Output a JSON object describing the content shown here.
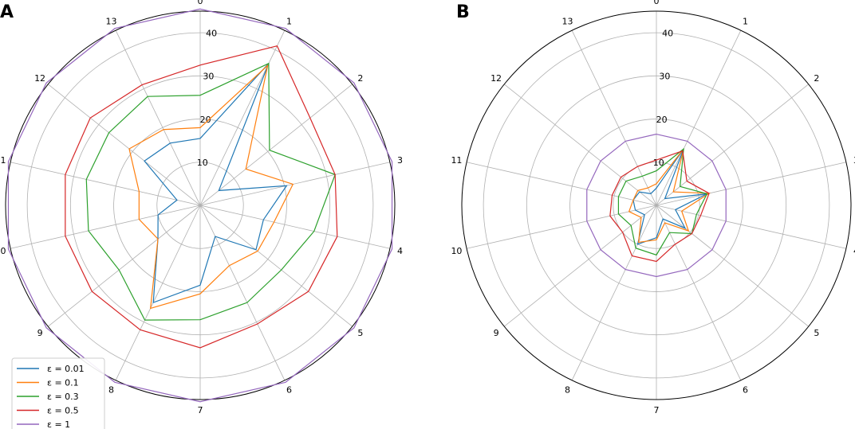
{
  "chart_data": [
    {
      "type": "radar",
      "panel": "A",
      "categories": [
        "0",
        "1",
        "2",
        "3",
        "4",
        "5",
        "6",
        "7",
        "8",
        "9",
        "10",
        "11",
        "12",
        "13"
      ],
      "r_ticks": [
        10,
        20,
        30,
        40
      ],
      "rlim": [
        0,
        45
      ],
      "grid": true,
      "legend": "bottom-left",
      "series": [
        {
          "name": "ε = 0.01",
          "color": "#1f77b4",
          "values": [
            15.5,
            36.5,
            5.5,
            20.5,
            15.0,
            16.5,
            8.0,
            18.5,
            25.0,
            12.5,
            10.0,
            5.5,
            16.5,
            16.0
          ]
        },
        {
          "name": "ε = 0.1",
          "color": "#ff7f0e",
          "values": [
            18.0,
            36.0,
            13.5,
            22.0,
            17.5,
            17.0,
            15.5,
            20.5,
            26.5,
            12.5,
            14.5,
            14.5,
            21.0,
            19.5
          ]
        },
        {
          "name": "ε = 0.3",
          "color": "#2ca02c",
          "values": [
            25.5,
            36.5,
            20.5,
            32.0,
            27.0,
            24.0,
            25.0,
            26.5,
            29.5,
            24.0,
            26.5,
            27.0,
            27.0,
            28.0
          ]
        },
        {
          "name": "ε = 0.5",
          "color": "#d62728",
          "values": [
            32.5,
            41.0,
            32.5,
            32.0,
            32.5,
            32.0,
            30.5,
            33.0,
            32.0,
            32.0,
            32.0,
            32.0,
            32.5,
            31.0
          ]
        },
        {
          "name": "ε = 1",
          "color": "#9467bd",
          "values": [
            45.5,
            45.5,
            45.5,
            45.5,
            45.5,
            45.5,
            45.5,
            45.5,
            45.5,
            45.5,
            45.5,
            45.5,
            45.5,
            45.5
          ]
        }
      ]
    },
    {
      "type": "radar",
      "panel": "B",
      "categories": [
        "0",
        "1",
        "2",
        "3",
        "4",
        "5",
        "6",
        "7",
        "8",
        "9",
        "10",
        "11",
        "12",
        "13"
      ],
      "r_ticks": [
        10,
        20,
        30,
        40
      ],
      "rlim": [
        0,
        45
      ],
      "grid": true,
      "series": [
        {
          "name": "ε = 0.01",
          "color": "#1f77b4",
          "values": [
            4.0,
            14.5,
            2.5,
            12.0,
            4.5,
            8.5,
            3.5,
            7.5,
            10.0,
            3.5,
            5.0,
            5.5,
            5.0,
            3.0
          ]
        },
        {
          "name": "ε = 0.1",
          "color": "#ff7f0e",
          "values": [
            5.0,
            14.5,
            5.0,
            12.5,
            6.0,
            9.5,
            4.5,
            8.0,
            9.5,
            4.5,
            6.5,
            5.5,
            5.5,
            4.5
          ]
        },
        {
          "name": "ε = 0.3",
          "color": "#2ca02c",
          "values": [
            8.0,
            14.5,
            7.0,
            12.0,
            9.5,
            10.5,
            7.0,
            11.5,
            11.0,
            7.5,
            9.0,
            9.0,
            9.0,
            7.5
          ]
        },
        {
          "name": "ε = 0.5",
          "color": "#d62728",
          "values": [
            10.5,
            14.0,
            9.0,
            12.5,
            10.5,
            10.5,
            10.0,
            13.0,
            13.0,
            10.0,
            11.0,
            10.5,
            10.5,
            10.0
          ]
        },
        {
          "name": "ε = 1",
          "color": "#9467bd",
          "values": [
            16.5,
            16.5,
            16.5,
            16.5,
            16.5,
            16.5,
            16.5,
            16.5,
            16.5,
            16.5,
            16.5,
            16.5,
            16.5,
            16.5
          ]
        }
      ]
    }
  ],
  "grid_color": "#b0b0b0",
  "outline_color": "#000000"
}
